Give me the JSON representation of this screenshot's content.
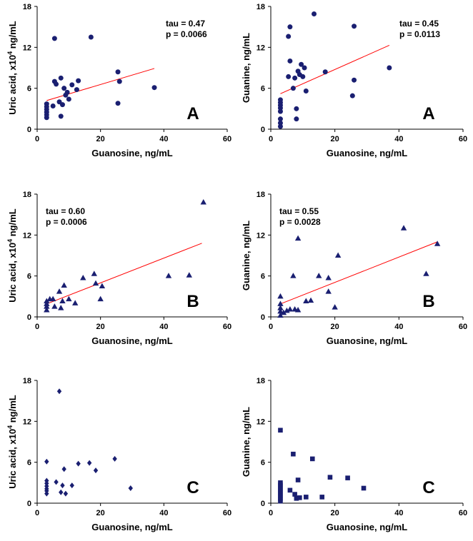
{
  "figure": {
    "colors": {
      "marker": "#1a1f71",
      "fit_line": "#ff0000",
      "axis": "#000000"
    }
  },
  "chart_data": [
    {
      "id": "uric-A",
      "type": "scatter",
      "marker": "circle",
      "letter": "A",
      "xlabel": "Guanosine, ng/mL",
      "ylabel_main": "Uric acid, x10",
      "ylabel_sup": "4",
      "ylabel_tail": " ng/mL",
      "xlim": [
        0,
        60
      ],
      "ylim": [
        0,
        18
      ],
      "xticks": [
        "0",
        "20",
        "40",
        "60"
      ],
      "yticks": [
        "0",
        "6",
        "12",
        "18"
      ],
      "stats": {
        "tau": "tau = 0.47",
        "p": "p = 0.0066",
        "position": "top-right"
      },
      "fit": {
        "x": [
          3,
          37
        ],
        "y": [
          4.2,
          8.9
        ]
      },
      "points": [
        [
          3,
          1.7
        ],
        [
          3,
          2.1
        ],
        [
          3,
          2.5
        ],
        [
          3,
          2.9
        ],
        [
          3,
          3.3
        ],
        [
          3,
          3.7
        ],
        [
          5,
          3.4
        ],
        [
          5.5,
          13.3
        ],
        [
          5.5,
          7.0
        ],
        [
          6,
          6.6
        ],
        [
          7,
          4.0
        ],
        [
          7.5,
          7.5
        ],
        [
          7.5,
          1.9
        ],
        [
          8,
          3.6
        ],
        [
          8.5,
          6.0
        ],
        [
          9,
          5.0
        ],
        [
          9.5,
          5.4
        ],
        [
          10,
          4.4
        ],
        [
          11,
          6.5
        ],
        [
          12.5,
          5.8
        ],
        [
          13,
          7.1
        ],
        [
          17,
          13.5
        ],
        [
          25.5,
          8.4
        ],
        [
          26,
          7.0
        ],
        [
          25.5,
          3.8
        ],
        [
          37,
          6.1
        ]
      ]
    },
    {
      "id": "guanine-A",
      "type": "scatter",
      "marker": "circle",
      "letter": "A",
      "xlabel": "Guanosine, ng/mL",
      "ylabel_main": "Guanine, ng/mL",
      "ylabel_sup": "",
      "ylabel_tail": "",
      "xlim": [
        0,
        60
      ],
      "ylim": [
        0,
        18
      ],
      "xticks": [
        "0",
        "20",
        "40",
        "60"
      ],
      "yticks": [
        "0",
        "6",
        "12",
        "18"
      ],
      "stats": {
        "tau": "tau = 0.45",
        "p": "p = 0.0113",
        "position": "top-right"
      },
      "fit": {
        "x": [
          3,
          37
        ],
        "y": [
          5.2,
          12.3
        ]
      },
      "points": [
        [
          3,
          0.4
        ],
        [
          3,
          0.9
        ],
        [
          3,
          1.5
        ],
        [
          3,
          2.6
        ],
        [
          3,
          3.1
        ],
        [
          3,
          3.5
        ],
        [
          3,
          3.9
        ],
        [
          3,
          4.3
        ],
        [
          5.5,
          13.6
        ],
        [
          5.5,
          7.7
        ],
        [
          6,
          15.0
        ],
        [
          6,
          10.0
        ],
        [
          7,
          6.0
        ],
        [
          7.5,
          7.5
        ],
        [
          8,
          1.5
        ],
        [
          8,
          3.0
        ],
        [
          8.5,
          8.5
        ],
        [
          9,
          8.0
        ],
        [
          9.5,
          9.5
        ],
        [
          10,
          7.7
        ],
        [
          10.5,
          9.0
        ],
        [
          11,
          5.6
        ],
        [
          13.5,
          16.9
        ],
        [
          17,
          8.4
        ],
        [
          26,
          15.1
        ],
        [
          26,
          7.2
        ],
        [
          25.5,
          4.9
        ],
        [
          37,
          9.0
        ]
      ]
    },
    {
      "id": "uric-B",
      "type": "scatter",
      "marker": "triangle",
      "letter": "B",
      "xlabel": "Guanosine, ng/mL",
      "ylabel_main": "Uric acid, x10",
      "ylabel_sup": "4",
      "ylabel_tail": " ng/mL",
      "xlim": [
        0,
        60
      ],
      "ylim": [
        0,
        18
      ],
      "xticks": [
        "0",
        "20",
        "40",
        "60"
      ],
      "yticks": [
        "0",
        "6",
        "12",
        "18"
      ],
      "stats": {
        "tau": "tau = 0.60",
        "p": "p = 0.0006",
        "position": "top-left"
      },
      "fit": {
        "x": [
          3,
          52
        ],
        "y": [
          1.9,
          10.8
        ]
      },
      "points": [
        [
          3,
          1.0
        ],
        [
          3,
          1.5
        ],
        [
          3,
          1.9
        ],
        [
          3,
          2.3
        ],
        [
          4,
          2.6
        ],
        [
          5,
          2.6
        ],
        [
          5.5,
          1.5
        ],
        [
          7,
          3.7
        ],
        [
          7.5,
          1.3
        ],
        [
          8,
          2.3
        ],
        [
          8.5,
          4.6
        ],
        [
          10,
          2.6
        ],
        [
          12,
          2.0
        ],
        [
          14.5,
          5.7
        ],
        [
          18,
          6.3
        ],
        [
          18.5,
          4.9
        ],
        [
          20,
          2.6
        ],
        [
          20.5,
          4.5
        ],
        [
          41.5,
          6.0
        ],
        [
          48,
          6.1
        ],
        [
          52.5,
          16.8
        ]
      ]
    },
    {
      "id": "guanine-B",
      "type": "scatter",
      "marker": "triangle",
      "letter": "B",
      "xlabel": "Guanosine, ng/mL",
      "ylabel_main": "Guanine, ng/mL",
      "ylabel_sup": "",
      "ylabel_tail": "",
      "xlim": [
        0,
        60
      ],
      "ylim": [
        0,
        18
      ],
      "xticks": [
        "0",
        "20",
        "40",
        "60"
      ],
      "yticks": [
        "0",
        "6",
        "12",
        "18"
      ],
      "stats": {
        "tau": "tau = 0.55",
        "p": "p = 0.0028",
        "position": "top-left"
      },
      "fit": {
        "x": [
          3,
          52
        ],
        "y": [
          1.9,
          11.0
        ]
      },
      "points": [
        [
          3,
          0.2
        ],
        [
          3,
          0.8
        ],
        [
          3,
          1.3
        ],
        [
          3,
          1.9
        ],
        [
          3,
          3.0
        ],
        [
          4,
          0.6
        ],
        [
          5,
          0.9
        ],
        [
          6,
          1.1
        ],
        [
          7,
          6.0
        ],
        [
          7.5,
          1.1
        ],
        [
          8.5,
          11.5
        ],
        [
          8.5,
          1.0
        ],
        [
          11,
          2.3
        ],
        [
          12.5,
          2.4
        ],
        [
          15,
          6.0
        ],
        [
          18,
          5.7
        ],
        [
          18,
          3.7
        ],
        [
          20,
          1.4
        ],
        [
          21,
          9.0
        ],
        [
          41.5,
          13.0
        ],
        [
          48.5,
          6.3
        ],
        [
          52,
          10.7
        ]
      ]
    },
    {
      "id": "uric-C",
      "type": "scatter",
      "marker": "diamond",
      "letter": "C",
      "xlabel": "Guanosine, ng/mL",
      "ylabel_main": "Uric acid, x10",
      "ylabel_sup": "4",
      "ylabel_tail": " ng/mL",
      "xlim": [
        0,
        60
      ],
      "ylim": [
        0,
        18
      ],
      "xticks": [
        "0",
        "20",
        "40",
        "60"
      ],
      "yticks": [
        "0",
        "6",
        "12",
        "18"
      ],
      "stats": null,
      "fit": null,
      "points": [
        [
          3,
          1.4
        ],
        [
          3,
          1.8
        ],
        [
          3,
          2.1
        ],
        [
          3,
          2.5
        ],
        [
          3,
          2.9
        ],
        [
          3,
          3.3
        ],
        [
          3,
          6.1
        ],
        [
          6,
          3.1
        ],
        [
          7,
          16.4
        ],
        [
          7.5,
          1.6
        ],
        [
          8,
          2.6
        ],
        [
          8.5,
          5.0
        ],
        [
          9,
          1.4
        ],
        [
          11,
          2.6
        ],
        [
          13,
          5.8
        ],
        [
          16.5,
          5.9
        ],
        [
          18.5,
          4.8
        ],
        [
          24.5,
          6.5
        ],
        [
          29.5,
          2.2
        ]
      ]
    },
    {
      "id": "guanine-C",
      "type": "scatter",
      "marker": "square",
      "letter": "C",
      "xlabel": "Guanosine, ng/mL",
      "ylabel_main": "Guanine, ng/mL",
      "ylabel_sup": "",
      "ylabel_tail": "",
      "xlim": [
        0,
        60
      ],
      "ylim": [
        0,
        18
      ],
      "xticks": [
        "0",
        "20",
        "40",
        "60"
      ],
      "yticks": [
        "0",
        "6",
        "12",
        "18"
      ],
      "stats": null,
      "fit": null,
      "points": [
        [
          3,
          0.3
        ],
        [
          3,
          0.6
        ],
        [
          3,
          0.9
        ],
        [
          3,
          1.2
        ],
        [
          3,
          1.5
        ],
        [
          3,
          1.8
        ],
        [
          3,
          2.1
        ],
        [
          3,
          2.4
        ],
        [
          3,
          2.7
        ],
        [
          3,
          3.0
        ],
        [
          3,
          10.7
        ],
        [
          6,
          1.9
        ],
        [
          7,
          7.2
        ],
        [
          7.5,
          1.3
        ],
        [
          8,
          0.7
        ],
        [
          8.5,
          3.4
        ],
        [
          9,
          0.8
        ],
        [
          11,
          0.9
        ],
        [
          13,
          6.5
        ],
        [
          16,
          0.9
        ],
        [
          18.5,
          3.8
        ],
        [
          24,
          3.7
        ],
        [
          29,
          2.2
        ]
      ]
    }
  ]
}
